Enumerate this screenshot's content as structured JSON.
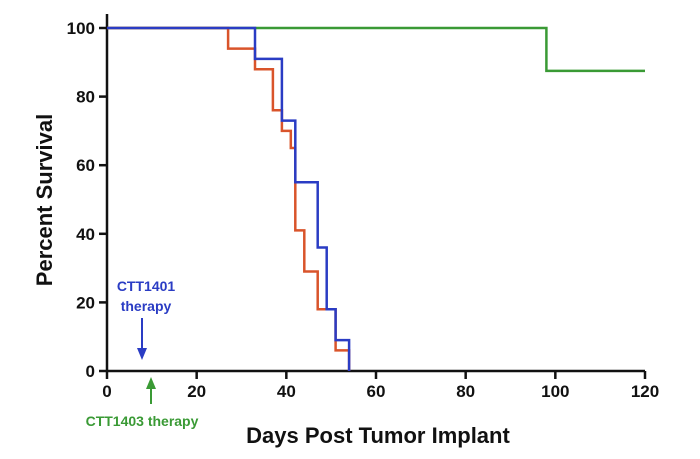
{
  "chart_data": {
    "type": "line",
    "step": true,
    "xlabel": "Days Post Tumor Implant",
    "ylabel": "Percent Survival",
    "xlim": [
      0,
      120
    ],
    "ylim": [
      0,
      100
    ],
    "x_ticks": [
      0,
      20,
      40,
      60,
      80,
      100,
      120
    ],
    "y_ticks": [
      0,
      20,
      40,
      60,
      80,
      100
    ],
    "grid": false,
    "series": [
      {
        "color": "#3a9a35",
        "points": [
          [
            0,
            100
          ],
          [
            98,
            100
          ],
          [
            98,
            87.5
          ],
          [
            120,
            87.5
          ]
        ]
      },
      {
        "color": "#d9542b",
        "points": [
          [
            0,
            100
          ],
          [
            27,
            100
          ],
          [
            27,
            94
          ],
          [
            33,
            94
          ],
          [
            33,
            88
          ],
          [
            37,
            88
          ],
          [
            37,
            76
          ],
          [
            39,
            76
          ],
          [
            39,
            70
          ],
          [
            41,
            70
          ],
          [
            41,
            65
          ],
          [
            42,
            65
          ],
          [
            42,
            41
          ],
          [
            44,
            41
          ],
          [
            44,
            29
          ],
          [
            47,
            29
          ],
          [
            47,
            18
          ],
          [
            51,
            18
          ],
          [
            51,
            6
          ],
          [
            54,
            6
          ],
          [
            54,
            0
          ]
        ]
      },
      {
        "color": "#2a3cc4",
        "points": [
          [
            0,
            100
          ],
          [
            33,
            100
          ],
          [
            33,
            91
          ],
          [
            39,
            91
          ],
          [
            39,
            73
          ],
          [
            41,
            73
          ],
          [
            41,
            73
          ],
          [
            42,
            73
          ],
          [
            42,
            55
          ],
          [
            47,
            55
          ],
          [
            47,
            36
          ],
          [
            49,
            36
          ],
          [
            49,
            18
          ],
          [
            51,
            18
          ],
          [
            51,
            9
          ],
          [
            54,
            9
          ],
          [
            54,
            0
          ]
        ]
      }
    ],
    "annotations": [
      {
        "text_lines": [
          "CTT1401",
          "therapy"
        ],
        "color": "#2a3cc4",
        "x": 8
      },
      {
        "text": "CTT1403 therapy",
        "color": "#3a9a35",
        "x": 10
      }
    ]
  }
}
